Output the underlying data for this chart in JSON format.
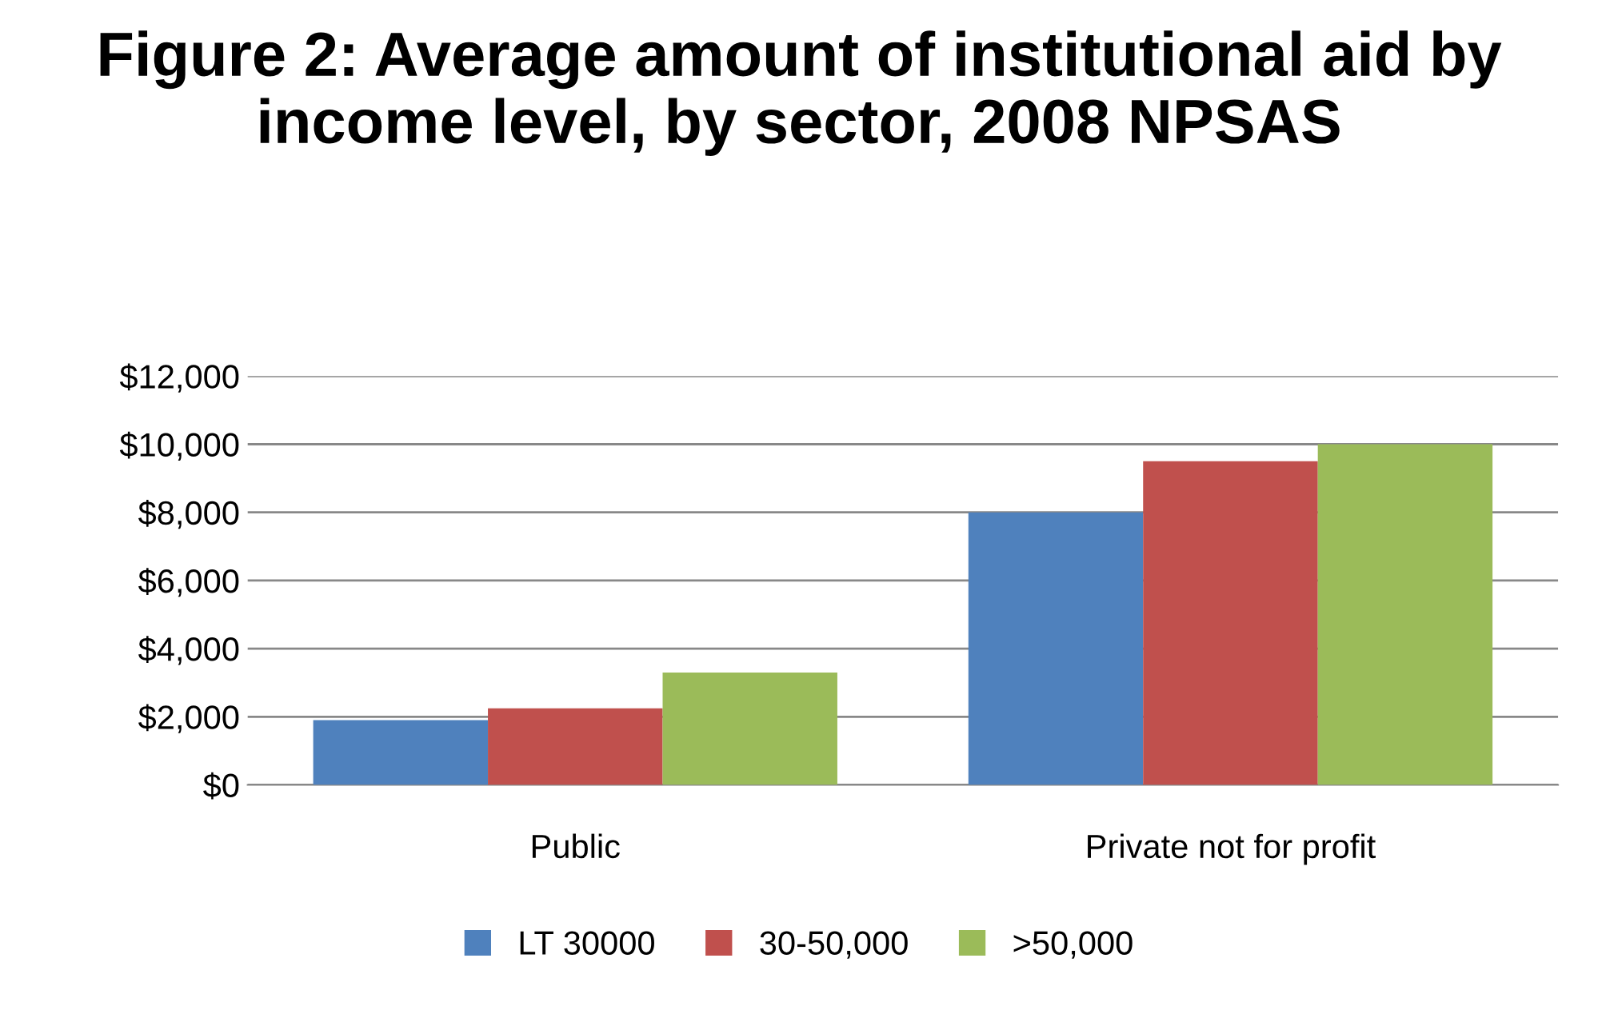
{
  "chart_data": {
    "type": "bar",
    "title": "Figure 2: Average amount of institutional aid by income level, by sector, 2008 NPSAS",
    "categories": [
      "Public",
      "Private not for profit"
    ],
    "series": [
      {
        "name": "LT 30000",
        "color": "#4f81bd",
        "values": [
          1900,
          8000
        ]
      },
      {
        "name": "30-50,000",
        "color": "#c0504d",
        "values": [
          2250,
          9500
        ]
      },
      {
        "name": ">50,000",
        "color": "#9bbb59",
        "values": [
          3300,
          10000
        ]
      }
    ],
    "ylim": [
      0,
      12000
    ],
    "yticks": [
      {
        "value": 0,
        "label": "$0"
      },
      {
        "value": 2000,
        "label": "$2,000"
      },
      {
        "value": 4000,
        "label": "$4,000"
      },
      {
        "value": 6000,
        "label": "$6,000"
      },
      {
        "value": 8000,
        "label": "$8,000"
      },
      {
        "value": 10000,
        "label": "$10,000"
      },
      {
        "value": 12000,
        "label": "$12,000"
      }
    ],
    "grid": "y",
    "legend": "bottom"
  }
}
